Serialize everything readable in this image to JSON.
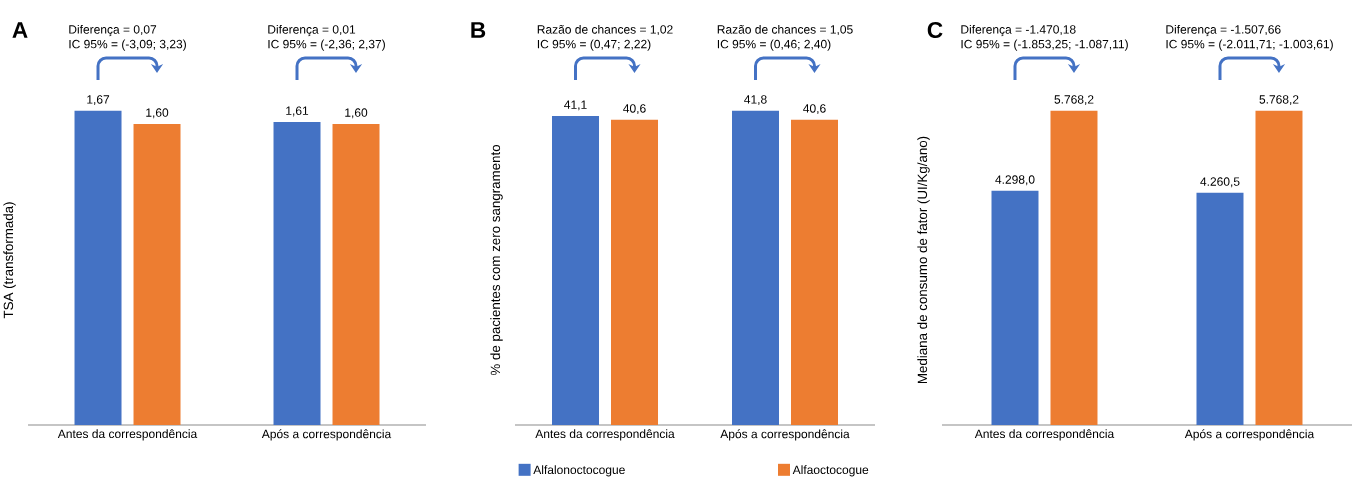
{
  "chart_data": [
    {
      "type": "bar",
      "title": "A",
      "ylabel": "TSA (transformada)",
      "categories": [
        "Antes da correspondência",
        "Após a correspondência"
      ],
      "series": [
        {
          "color": "#4472c4",
          "values": [
            1.67,
            1.61
          ],
          "value_labels": [
            "1,67",
            "1,61"
          ]
        },
        {
          "color": "#ed7d31",
          "values": [
            1.6,
            1.6
          ],
          "value_labels": [
            "1,60",
            "1,60"
          ]
        }
      ],
      "annotations": [
        "Diferença = 0,07",
        "IC 95% = (-3,09; 3,23)",
        "Diferença = 0,01",
        "IC 95% = (-2,36; 2,37)"
      ]
    },
    {
      "type": "bar",
      "title": "B",
      "ylabel": "% de pacientes com zero sangramento",
      "categories": [
        "Antes da correspondência",
        "Após a correspondência"
      ],
      "legend": "bottom",
      "series": [
        {
          "name": "Alfalonoctocogue",
          "color": "#4472c4",
          "values": [
            41.1,
            41.8
          ],
          "value_labels": [
            "41,1",
            "41,8"
          ]
        },
        {
          "name": "Alfaoctocogue",
          "color": "#ed7d31",
          "values": [
            40.6,
            40.6
          ],
          "value_labels": [
            "40,6",
            "40,6"
          ]
        }
      ],
      "annotations": [
        "Razão de chances = 1,02",
        "IC 95% = (0,47; 2,22)",
        "Razão de chances = 1,05",
        "IC 95% = (0,46; 2,40)"
      ]
    },
    {
      "type": "bar",
      "title": "C",
      "ylabel": "Mediana de consumo de fator (UI/Kg/ano)",
      "categories": [
        "Antes da correspondência",
        "Após a correspondência"
      ],
      "series": [
        {
          "color": "#4472c4",
          "values": [
            4298.0,
            4260.5
          ],
          "value_labels": [
            "4.298,0",
            "4.260,5"
          ]
        },
        {
          "color": "#ed7d31",
          "values": [
            5768.2,
            5768.2
          ],
          "value_labels": [
            "5.768,2",
            "5.768,2"
          ]
        }
      ],
      "annotations": [
        "Diferença = -1.470,18",
        "IC 95% = (-1.853,25; -1.087,11)",
        "Diferença = -1.507,66",
        "IC 95% = (-2.011,71; -1.003,61)"
      ]
    }
  ]
}
